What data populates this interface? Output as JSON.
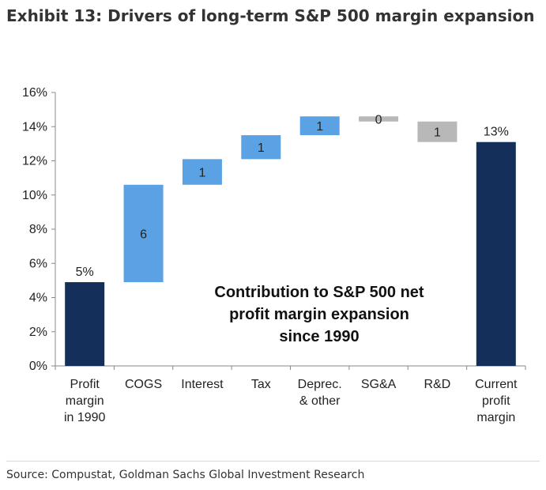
{
  "header": {
    "title": "Exhibit 13: Drivers of long-term S&P 500 margin expansion"
  },
  "footer": {
    "source": "Source: Compustat, Goldman Sachs Global Investment Research"
  },
  "colors": {
    "total": "#14305a",
    "increase": "#5aa2e3",
    "decrease": "#b8b8b8"
  },
  "chart_data": {
    "type": "bar",
    "subtype": "waterfall",
    "categories": [
      [
        "Profit",
        "margin",
        "in 1990"
      ],
      [
        "COGS"
      ],
      [
        "Interest"
      ],
      [
        "Tax"
      ],
      [
        "Deprec.",
        "& other"
      ],
      [
        "SG&A"
      ],
      [
        "R&D"
      ],
      [
        "Current",
        "profit",
        "margin"
      ]
    ],
    "bars": [
      {
        "kind": "total",
        "start": 0,
        "end": 4.9,
        "label": "5%"
      },
      {
        "kind": "increase",
        "start": 4.9,
        "end": 10.6,
        "label": "6"
      },
      {
        "kind": "increase",
        "start": 10.6,
        "end": 12.1,
        "label": "1"
      },
      {
        "kind": "increase",
        "start": 12.1,
        "end": 13.5,
        "label": "1"
      },
      {
        "kind": "increase",
        "start": 13.5,
        "end": 14.6,
        "label": "1"
      },
      {
        "kind": "decrease",
        "start": 14.6,
        "end": 14.3,
        "label": "0"
      },
      {
        "kind": "decrease",
        "start": 14.3,
        "end": 13.1,
        "label": "1"
      },
      {
        "kind": "total",
        "start": 0,
        "end": 13.1,
        "label": "13%"
      }
    ],
    "y_ticks": [
      "0%",
      "2%",
      "4%",
      "6%",
      "8%",
      "10%",
      "12%",
      "14%",
      "16%"
    ],
    "ylim": [
      0,
      16
    ],
    "annotation": [
      "Contribution to S&P 500 net",
      "profit margin expansion",
      "since 1990"
    ],
    "grid": false,
    "legend": "none"
  }
}
